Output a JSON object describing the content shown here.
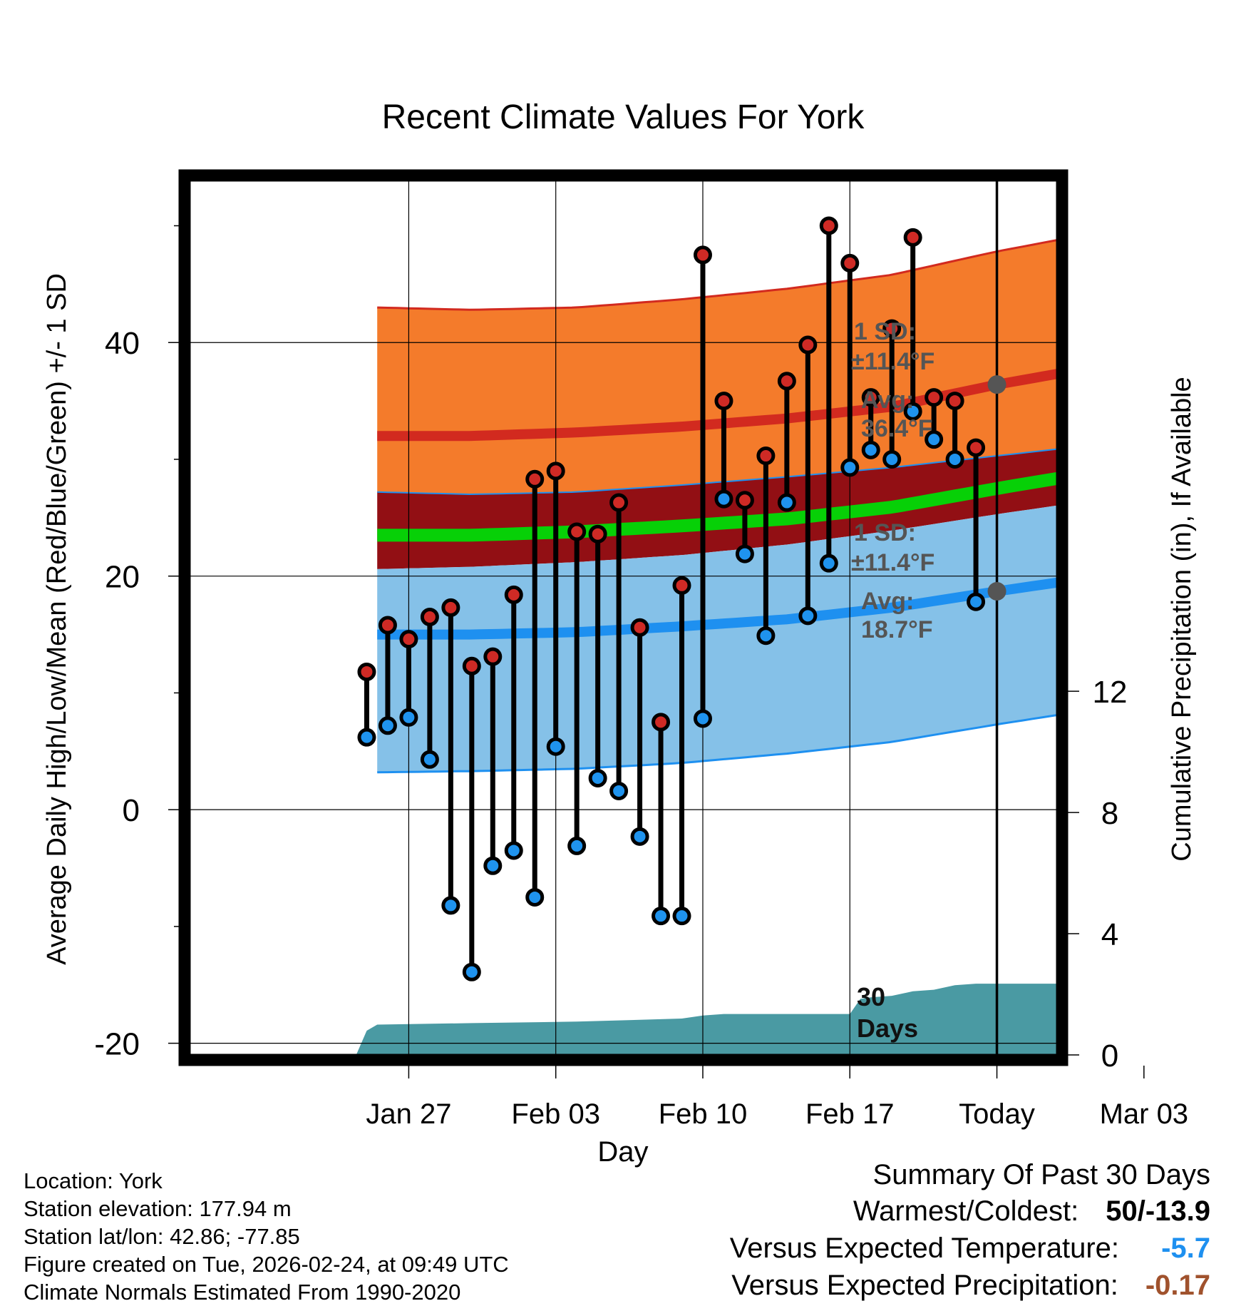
{
  "chart_data": {
    "type": "range-bar-with-normals",
    "title": "Recent Climate Values For York",
    "xlabel": "Day",
    "ylabel": "Average Daily High/Low/Mean (Red/Blue/Green) +/- 1 SD",
    "y2label": "Cumulative Precipitation (in), If Available",
    "ylim": [
      -21,
      54
    ],
    "y2lim": [
      0,
      28.9
    ],
    "xlim": [
      -38.5,
      2.9
    ],
    "yticks": [
      -20,
      0,
      20,
      40
    ],
    "y2ticks": [
      0,
      4,
      8,
      12
    ],
    "xticks": [
      {
        "day": -28,
        "label": "Jan 27"
      },
      {
        "day": -21,
        "label": "Feb 03"
      },
      {
        "day": -14,
        "label": "Feb 10"
      },
      {
        "day": -7,
        "label": "Feb 17"
      },
      {
        "day": 0,
        "label": "Today"
      },
      {
        "day": 7,
        "label": "Mar 03"
      }
    ],
    "daily_observations": {
      "day_offset": [
        -30,
        -29,
        -28,
        -27,
        -26,
        -25,
        -24,
        -23,
        -22,
        -21,
        -20,
        -19,
        -18,
        -17,
        -16,
        -15,
        -14,
        -13,
        -12,
        -11,
        -10,
        -9,
        -8,
        -7,
        -6,
        -5,
        -4,
        -3,
        -2,
        -1
      ],
      "high_F": [
        11.8,
        15.8,
        14.6,
        16.5,
        17.3,
        12.3,
        13.1,
        18.4,
        28.3,
        29.0,
        23.8,
        23.6,
        26.3,
        15.6,
        7.5,
        19.2,
        47.5,
        35.0,
        26.5,
        30.3,
        36.7,
        39.8,
        50.0,
        46.8,
        35.3,
        41.2,
        49.0,
        35.3,
        35.0,
        31.0
      ],
      "low_F": [
        6.2,
        7.2,
        7.9,
        4.3,
        -8.2,
        -13.9,
        -4.8,
        -3.5,
        -7.5,
        5.4,
        -3.1,
        2.7,
        1.6,
        -2.3,
        -9.1,
        -9.1,
        7.8,
        26.6,
        21.9,
        14.9,
        26.3,
        16.6,
        21.1,
        29.3,
        30.8,
        30.0,
        34.1,
        31.7,
        30.0,
        17.8
      ]
    },
    "normals": {
      "day_offset": [
        -29.5,
        -25,
        -20,
        -15,
        -10,
        -5,
        0,
        5,
        9.5
      ],
      "avg_high_F": [
        32.0,
        32.0,
        32.3,
        32.8,
        33.5,
        34.5,
        36.4,
        38.0,
        39.5
      ],
      "avg_low_F": [
        15.0,
        15.0,
        15.2,
        15.7,
        16.3,
        17.3,
        18.7,
        20.0,
        21.2
      ],
      "avg_mean_F": [
        23.5,
        23.5,
        23.8,
        24.3,
        24.9,
        25.9,
        27.5,
        29.0,
        30.3
      ],
      "high_sd_upper_F": [
        43.0,
        42.8,
        43.0,
        43.7,
        44.6,
        45.8,
        47.8,
        49.5,
        51.0
      ],
      "low_sd_upper_F": [
        27.2,
        27.0,
        27.2,
        27.8,
        28.5,
        29.3,
        30.3,
        31.3,
        32.3
      ],
      "high_sd_lower_F": [
        20.6,
        20.8,
        21.2,
        21.8,
        22.7,
        23.9,
        25.3,
        26.6,
        27.8
      ],
      "low_sd_lower_F": [
        3.2,
        3.3,
        3.5,
        4.0,
        4.8,
        5.8,
        7.3,
        8.7,
        10.2
      ]
    },
    "cumulative_precip_in": {
      "day_offset": [
        -30.5,
        -30.0,
        -29.5,
        -25,
        -20,
        -15,
        -14,
        -13,
        -7,
        -6.5,
        -6.0,
        -5,
        -4,
        -3,
        -2,
        -1,
        0,
        9.5
      ],
      "values": [
        0.0,
        0.8,
        1.0,
        1.05,
        1.1,
        1.2,
        1.3,
        1.35,
        1.35,
        1.85,
        1.9,
        1.95,
        2.1,
        2.15,
        2.3,
        2.35,
        2.35,
        2.35
      ]
    },
    "annotations": {
      "high_sd_line1": "1 SD:",
      "high_sd_line2": "±11.4°F",
      "high_avg_line1": "Avg:",
      "high_avg_line2": "36.4°F",
      "high_avg_value": 36.4,
      "low_sd_line1": "1 SD:",
      "low_sd_line2": "±11.4°F",
      "low_avg_line1": "Avg:",
      "low_avg_line2": "18.7°F",
      "low_avg_value": 18.7,
      "days_line1": "30",
      "days_line2": "Days"
    },
    "colors": {
      "high_band": "#f47b2b",
      "high_line": "#d22a1f",
      "low_band": "#85c1e8",
      "low_line": "#1e90f0",
      "mean_band": "#920f14",
      "mean_line": "#07d007",
      "precip": "#4a9aa3",
      "high_dot": "#cf2a25",
      "low_dot": "#1f93ee",
      "annotation": "#555555"
    }
  },
  "meta": {
    "location": "Location: York",
    "elevation": "Station elevation: 177.94 m",
    "latlon": "Station lat/lon: 42.86; -77.85",
    "created": "Figure created on Tue, 2026-02-24, at 09:49 UTC",
    "normals": "Climate Normals Estimated From 1990-2020"
  },
  "summary": {
    "title": "Summary Of Past 30 Days",
    "warmest_coldest_label": "Warmest/Coldest:",
    "warmest_coldest_value": "50/-13.9",
    "vs_temp_label": "Versus Expected Temperature:",
    "vs_temp_value": "-5.7",
    "vs_temp_color": "#1e90f0",
    "vs_precip_label": "Versus Expected Precipitation:",
    "vs_precip_value": "-0.17",
    "vs_precip_color": "#a0522d"
  }
}
